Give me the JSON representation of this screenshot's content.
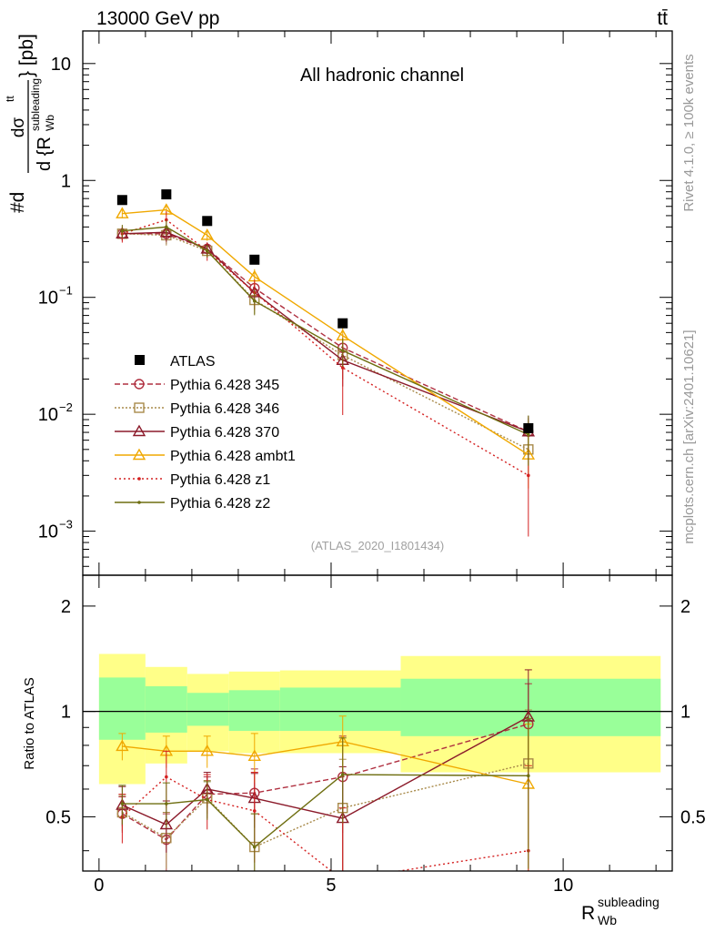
{
  "header": {
    "energy": "13000 GeV pp",
    "process": "tt̄",
    "channel": "All hadronic channel",
    "analysis_id": "(ATLAS_2020_I1801434)",
    "rivet": "Rivet 4.1.0, ≥ 100k events",
    "mcplots": "mcplots.cern.ch [arXiv:2401.10621]"
  },
  "axes": {
    "ylabel_main": "#d dσ^tt / d {R_Wb^subleading} [pb]",
    "ylabel_main_parts": {
      "prefix": "#d",
      "numer": "dσ",
      "numer_sup": "tt",
      "denom": "d {R",
      "denom_sub": "Wb",
      "denom_sup": "subleading",
      "unit": "} [pb]"
    },
    "ylabel_ratio": "Ratio to ATLAS",
    "xlabel": {
      "base": "R",
      "sub": "Wb",
      "sup": "subleading"
    },
    "xticks": [
      "0",
      "5",
      "10"
    ],
    "yticks_main": [
      {
        "value": 10,
        "mantissa": "10",
        "exp": ""
      },
      {
        "value": 1,
        "mantissa": "1",
        "exp": ""
      },
      {
        "value": 0.1,
        "mantissa": "10",
        "exp": "−1"
      },
      {
        "value": 0.01,
        "mantissa": "10",
        "exp": "−2"
      },
      {
        "value": 0.001,
        "mantissa": "10",
        "exp": "−3"
      }
    ],
    "yticks_ratio": [
      "0.5",
      "1",
      "2"
    ]
  },
  "chart_data": {
    "type": "line",
    "title": "All hadronic channel",
    "xlabel": "R_Wb^subleading",
    "ylabel": "dσ/dR_Wb^subleading [pb]",
    "xlim": [
      -0.35,
      12.35
    ],
    "ylim": [
      0.00042,
      19
    ],
    "yscale": "log",
    "ratio_ylim": [
      0.35,
      2.45
    ],
    "bin_edges": [
      0,
      1,
      1.9,
      2.8,
      3.9,
      6.5,
      12.1
    ],
    "x": [
      0.5,
      1.45,
      2.33,
      3.35,
      5.25,
      9.25
    ],
    "data": {
      "name": "ATLAS",
      "values": [
        0.68,
        0.76,
        0.45,
        0.21,
        0.06,
        0.0076
      ],
      "band_green": [
        [
          0.83,
          1.25
        ],
        [
          0.87,
          1.18
        ],
        [
          0.91,
          1.13
        ],
        [
          0.88,
          1.15
        ],
        [
          0.88,
          1.17
        ],
        [
          0.85,
          1.24
        ]
      ],
      "band_yellow": [
        [
          0.62,
          1.46
        ],
        [
          0.71,
          1.34
        ],
        [
          0.77,
          1.28
        ],
        [
          0.76,
          1.3
        ],
        [
          0.76,
          1.31
        ],
        [
          0.67,
          1.44
        ]
      ]
    },
    "series": [
      {
        "name": "Pythia 6.428 345",
        "color": "#b03040",
        "dash": "6,3",
        "marker": "circle",
        "values": [
          0.35,
          0.35,
          0.26,
          0.12,
          0.037,
          0.0071
        ],
        "ratio": [
          0.51,
          0.43,
          0.58,
          0.585,
          0.65,
          0.92
        ],
        "ratio_err": [
          0.06,
          0.08,
          0.07,
          0.1,
          0.2,
          0.28
        ]
      },
      {
        "name": "Pythia 6.428 346",
        "color": "#a88a4a",
        "dash": "2,2",
        "marker": "square",
        "values": [
          0.35,
          0.34,
          0.25,
          0.095,
          0.032,
          0.005
        ],
        "ratio": [
          0.515,
          0.435,
          0.565,
          0.41,
          0.53,
          0.71
        ],
        "ratio_err": [
          0.06,
          0.08,
          0.07,
          0.1,
          0.2,
          0.3
        ]
      },
      {
        "name": "Pythia 6.428 370",
        "color": "#8b1a2a",
        "dash": "",
        "marker": "triangle",
        "values": [
          0.35,
          0.36,
          0.26,
          0.11,
          0.029,
          0.0071
        ],
        "ratio": [
          0.54,
          0.475,
          0.6,
          0.565,
          0.495,
          0.965
        ],
        "ratio_err": [
          0.07,
          0.08,
          0.07,
          0.1,
          0.2,
          0.35
        ]
      },
      {
        "name": "Pythia 6.428 ambt1",
        "color": "#f0a800",
        "dash": "",
        "marker": "triangle",
        "values": [
          0.52,
          0.56,
          0.34,
          0.15,
          0.047,
          0.0045
        ],
        "ratio": [
          0.795,
          0.77,
          0.77,
          0.745,
          0.82,
          0.62
        ],
        "ratio_err": [
          0.07,
          0.08,
          0.08,
          0.12,
          0.15,
          0.3
        ]
      },
      {
        "name": "Pythia 6.428 z1",
        "color": "#d42020",
        "dash": "2,3",
        "marker": "dot",
        "values": [
          0.35,
          0.46,
          0.25,
          0.11,
          0.025,
          0.003
        ],
        "ratio": [
          0.5,
          0.65,
          0.56,
          0.52,
          0.33,
          0.4
        ],
        "ratio_err": [
          0.08,
          0.12,
          0.1,
          0.15,
          0.2,
          0.3
        ]
      },
      {
        "name": "Pythia 6.428 z2",
        "color": "#6e6e10",
        "dash": "",
        "marker": "dot",
        "values": [
          0.37,
          0.4,
          0.25,
          0.093,
          0.035,
          0.0067
        ],
        "ratio": [
          0.545,
          0.545,
          0.56,
          0.41,
          0.66,
          0.655
        ],
        "ratio_err": [
          0.07,
          0.08,
          0.07,
          0.1,
          0.18,
          0.3
        ]
      }
    ]
  }
}
